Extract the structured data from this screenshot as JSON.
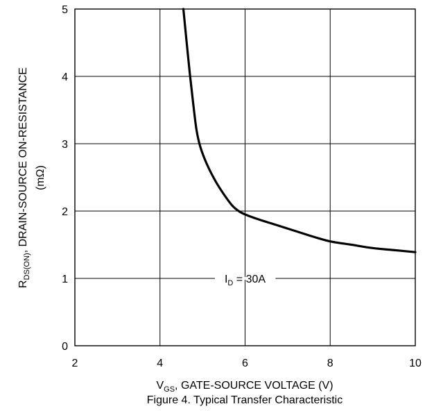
{
  "chart_data": {
    "type": "line",
    "title": "Figure 4. Typical Transfer Characteristic",
    "xlabel": {
      "main": "V",
      "sub": "GS",
      "rest": ", GATE-SOURCE VOLTAGE (V)"
    },
    "ylabel": {
      "line1_main": "R",
      "line1_sub": "DS(ON)",
      "line1_rest": ", DRAIN-SOURCE ON-RESISTANCE",
      "line2": "(mΩ)"
    },
    "xlim": [
      2,
      10
    ],
    "ylim": [
      0,
      5
    ],
    "xticks": [
      "2",
      "4",
      "6",
      "8",
      "10"
    ],
    "yticks": [
      "0",
      "1",
      "2",
      "3",
      "4",
      "5"
    ],
    "grid": true,
    "annotation": {
      "main": "I",
      "sub": "D",
      "rest": " = 30A",
      "x": 6,
      "y": 1
    },
    "series": [
      {
        "x": [
          4.55,
          4.62,
          4.7,
          4.78,
          4.86,
          4.95,
          5.1,
          5.3,
          5.5,
          5.7,
          5.85,
          6.0,
          6.3,
          6.7,
          7.2,
          7.6,
          8.0,
          8.5,
          9.0,
          9.5,
          10.0
        ],
        "y": [
          5.0,
          4.55,
          4.05,
          3.6,
          3.2,
          2.95,
          2.7,
          2.45,
          2.25,
          2.08,
          2.0,
          1.95,
          1.88,
          1.8,
          1.7,
          1.62,
          1.55,
          1.5,
          1.45,
          1.42,
          1.39
        ]
      }
    ]
  }
}
